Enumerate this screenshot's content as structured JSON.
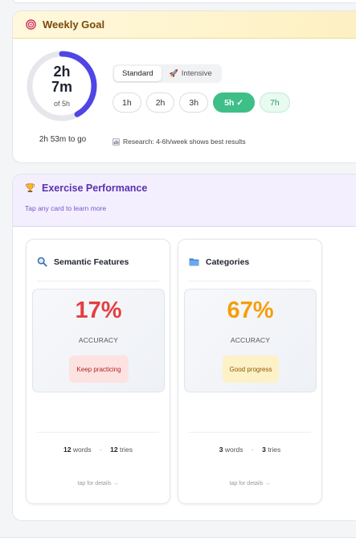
{
  "weekly_goal": {
    "title": "Weekly Goal",
    "icon": "target-icon",
    "progress_time": "2h 7m",
    "progress_time_line1": "2h",
    "progress_time_line2": "7m",
    "goal_label": "of 5h",
    "progress_fraction": 0.42,
    "remaining": "2h 53m to go",
    "modes": [
      {
        "label": "Standard",
        "active": true
      },
      {
        "label": "Intensive",
        "active": false,
        "icon": "rocket-icon"
      }
    ],
    "hour_options": [
      {
        "label": "1h",
        "state": "default"
      },
      {
        "label": "2h",
        "state": "default"
      },
      {
        "label": "3h",
        "state": "default"
      },
      {
        "label": "5h ✓",
        "state": "selected"
      },
      {
        "label": "7h",
        "state": "alt"
      }
    ],
    "research_note": "Research: 4-6h/week shows best results",
    "research_icon": "chart-icon",
    "colors": {
      "ring": "#4f46e5",
      "ring_track": "#e6e7ec",
      "selected": "#3ebf87"
    }
  },
  "performance": {
    "title": "Exercise Performance",
    "icon": "trophy-icon",
    "subtitle": "Tap any card to learn more",
    "cards": [
      {
        "name": "Semantic Features",
        "icon": "magnifier-icon",
        "percent": "17%",
        "accuracy_label": "ACCURACY",
        "status": "Keep practicing",
        "percent_color": "#e53e3e",
        "badge_bg": "#fde2e2",
        "badge_color": "#b42323",
        "words_count": "12",
        "words_label": "words",
        "tries_count": "12",
        "tries_label": "tries",
        "tap_hint": "tap for details →"
      },
      {
        "name": "Categories",
        "icon": "folder-icon",
        "percent": "67%",
        "accuracy_label": "ACCURACY",
        "status": "Good progress",
        "percent_color": "#f59e0b",
        "badge_bg": "#fdf1c7",
        "badge_color": "#8a5a00",
        "words_count": "3",
        "words_label": "words",
        "tries_count": "3",
        "tries_label": "tries",
        "tap_hint": "tap for details →"
      }
    ]
  }
}
